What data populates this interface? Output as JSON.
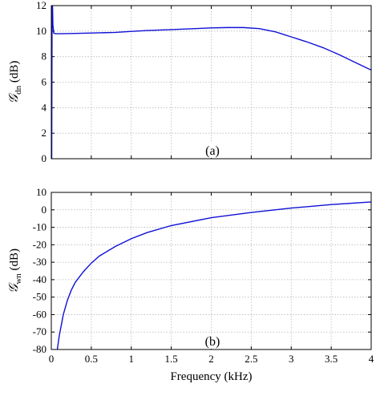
{
  "chart_data": [
    {
      "type": "line",
      "panel_label": "(a)",
      "ylabel": {
        "symbol": "𝒢",
        "subscript": "dn",
        "unit": " (dB)"
      },
      "xlim": [
        0,
        4
      ],
      "ylim": [
        0,
        12
      ],
      "xticks": [
        0,
        0.5,
        1,
        1.5,
        2,
        2.5,
        3,
        3.5,
        4
      ],
      "yticks": [
        0,
        2,
        4,
        6,
        8,
        10,
        12
      ],
      "ytick_labels": [
        "0",
        "2",
        "4",
        "6",
        "8",
        "10",
        "12"
      ],
      "grid": true,
      "series": [
        {
          "color": "#1010d8",
          "x": [
            0.005,
            0.01,
            0.015,
            0.02,
            0.03,
            0.05,
            0.1,
            0.3,
            0.5,
            0.8,
            1.0,
            1.2,
            1.5,
            1.8,
            2.0,
            2.2,
            2.4,
            2.6,
            2.8,
            2.9,
            3.0,
            3.1,
            3.2,
            3.4,
            3.6,
            3.8,
            4.0
          ],
          "y": [
            0,
            12,
            12,
            10.5,
            9.85,
            9.8,
            9.8,
            9.82,
            9.85,
            9.9,
            9.98,
            10.05,
            10.12,
            10.2,
            10.25,
            10.28,
            10.28,
            10.2,
            9.95,
            9.75,
            9.55,
            9.35,
            9.15,
            8.7,
            8.15,
            7.55,
            6.95
          ]
        }
      ]
    },
    {
      "type": "line",
      "panel_label": "(b)",
      "ylabel": {
        "symbol": "𝒢",
        "subscript": "wn",
        "unit": " (dB)"
      },
      "xlabel": "Frequency (kHz)",
      "xlim": [
        0,
        4
      ],
      "ylim": [
        -80,
        10
      ],
      "xticks": [
        0,
        0.5,
        1,
        1.5,
        2,
        2.5,
        3,
        3.5,
        4
      ],
      "xtick_labels": [
        "0",
        "0.5",
        "1",
        "1.5",
        "2",
        "2.5",
        "3",
        "3.5",
        "4"
      ],
      "yticks": [
        -80,
        -70,
        -60,
        -50,
        -40,
        -30,
        -20,
        -10,
        0,
        10
      ],
      "ytick_labels": [
        "-80",
        "-70",
        "-60",
        "-50",
        "-40",
        "-30",
        "-20",
        "-10",
        "0",
        "10"
      ],
      "grid": true,
      "series": [
        {
          "color": "#1010d8",
          "x": [
            0.075,
            0.1,
            0.15,
            0.2,
            0.25,
            0.3,
            0.4,
            0.5,
            0.6,
            0.8,
            1.0,
            1.2,
            1.5,
            2.0,
            2.5,
            3.0,
            3.5,
            4.0
          ],
          "y": [
            -80,
            -72,
            -60,
            -52,
            -46,
            -41.5,
            -35.5,
            -30.5,
            -26.5,
            -21,
            -16.5,
            -13,
            -9,
            -4.5,
            -1.5,
            1,
            3,
            4.5
          ]
        }
      ]
    }
  ]
}
